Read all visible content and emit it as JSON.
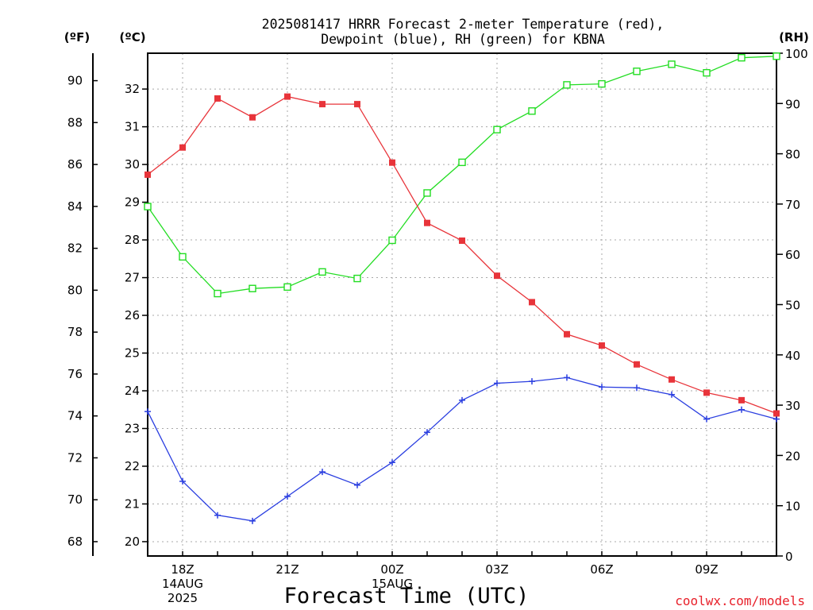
{
  "title_line1": "2025081417 HRRR Forecast 2-meter Temperature (red),",
  "title_line2": "Dewpoint (blue), RH (green) for KBNA",
  "unit_f": "(ºF)",
  "unit_c": "(ºC)",
  "unit_rh": "(RH)",
  "credit": "coolwx.com/models",
  "chart_data": {
    "type": "line",
    "title": "2025081417 HRRR Forecast 2-meter Temperature (red), Dewpoint (blue), RH (green) for KBNA",
    "xlabel": "Forecast Time (UTC)",
    "x_hours_utc": [
      "17Z",
      "18Z",
      "19Z",
      "20Z",
      "21Z",
      "22Z",
      "23Z",
      "00Z",
      "01Z",
      "02Z",
      "03Z",
      "04Z",
      "05Z",
      "06Z",
      "07Z",
      "08Z",
      "09Z",
      "10Z",
      "11Z"
    ],
    "x_tick_labels": [
      {
        "index": 1,
        "lines": [
          "18Z",
          "14AUG",
          "2025"
        ]
      },
      {
        "index": 4,
        "lines": [
          "21Z"
        ]
      },
      {
        "index": 7,
        "lines": [
          "00Z",
          "15AUG"
        ]
      },
      {
        "index": 10,
        "lines": [
          "03Z"
        ]
      },
      {
        "index": 13,
        "lines": [
          "06Z"
        ]
      },
      {
        "index": 16,
        "lines": [
          "09Z"
        ]
      }
    ],
    "axes": {
      "celsius": {
        "label": "(ºC)",
        "range": [
          19.62,
          32.95
        ],
        "ticks": [
          20,
          21,
          22,
          23,
          24,
          25,
          26,
          27,
          28,
          29,
          30,
          31,
          32
        ]
      },
      "fahrenheit": {
        "label": "(ºF)",
        "ticks": [
          68,
          70,
          72,
          74,
          76,
          78,
          80,
          82,
          84,
          86,
          88,
          90
        ]
      },
      "rh": {
        "label": "(RH)",
        "range": [
          0,
          100
        ],
        "ticks": [
          0,
          10,
          20,
          30,
          40,
          50,
          60,
          70,
          80,
          90,
          100
        ]
      }
    },
    "grid": true,
    "series": [
      {
        "name": "2-meter Temperature (red)",
        "axis": "celsius",
        "color": "#e8343a",
        "marker": "filled-square",
        "values": [
          29.73,
          30.45,
          31.75,
          31.25,
          31.8,
          31.6,
          31.6,
          30.05,
          28.45,
          27.98,
          27.05,
          26.35,
          25.5,
          25.2,
          24.7,
          24.3,
          23.95,
          23.75,
          23.4
        ]
      },
      {
        "name": "Dewpoint (blue)",
        "axis": "celsius",
        "color": "#2a3ee0",
        "marker": "plus",
        "values": [
          23.45,
          21.6,
          20.7,
          20.55,
          21.2,
          21.85,
          21.5,
          22.1,
          22.9,
          23.75,
          24.2,
          24.25,
          24.35,
          24.1,
          24.08,
          23.9,
          23.25,
          23.5,
          23.25
        ]
      },
      {
        "name": "RH (green)",
        "axis": "rh",
        "color": "#22dd22",
        "marker": "open-square",
        "values": [
          69.5,
          59.5,
          52.2,
          53.2,
          53.5,
          56.5,
          55.2,
          62.8,
          72.2,
          78.3,
          84.8,
          88.5,
          93.7,
          93.9,
          96.4,
          97.8,
          96.1,
          99.1,
          99.4
        ]
      }
    ]
  }
}
